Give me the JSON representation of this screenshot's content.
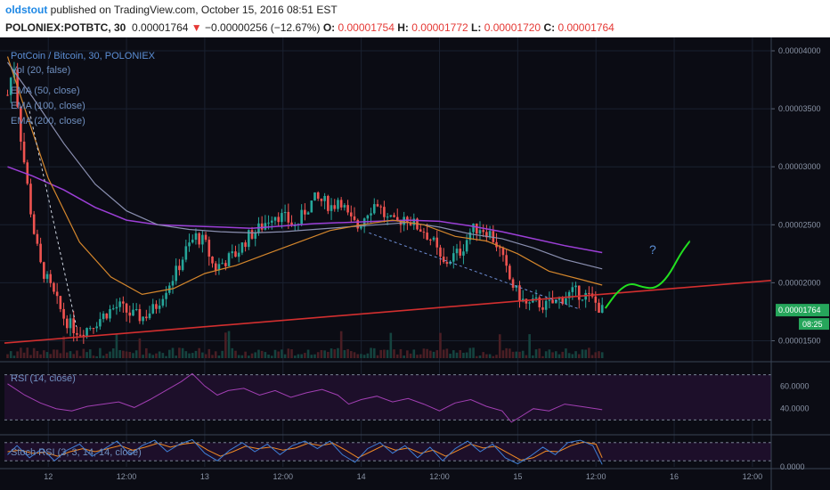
{
  "header": {
    "author": "oldstout",
    "published": "published on TradingView.com, October 15, 2016 08:51 EST",
    "symbol": "POLONIEX:POTBTC, 30",
    "price": "0.00001764",
    "change_arrow": "▼",
    "change": "−0.00000256 (−12.67%)",
    "o_label": "O:",
    "o_value": "0.00001754",
    "h_label": "H:",
    "h_value": "0.00001772",
    "l_label": "L:",
    "l_value": "0.00001720",
    "c_label": "C:",
    "c_value": "0.00001764"
  },
  "legend": {
    "title": "PotCoin / Bitcoin, 30, POLONIEX",
    "vol": "Vol (20, false)",
    "ema50": "EMA (50, close)",
    "ema100": "EMA (100, close)",
    "ema200": "EMA (200, close)"
  },
  "rsi_label": "RSI (14, close)",
  "stoch_label": "Stoch RSI (3, 3, 14, 14, close)",
  "price_tag": "0.00001764",
  "time_tag": "08:25",
  "annotation": "?",
  "colors": {
    "background": "#0b0c14",
    "grid": "#1a2130",
    "up": "#26a69a",
    "down": "#ef5350",
    "ema50": "#d4862c",
    "ema100": "#8a8fb0",
    "ema200": "#9c3fd6",
    "trendline": "#d32f2f",
    "projection": "#22e020",
    "rsi": "#a23fb3",
    "stoch_k": "#3f7fd6",
    "stoch_d": "#f08a24",
    "price_tag": "#26a65b"
  },
  "chart_data": [
    {
      "type": "candlestick",
      "x_ticks": [
        "12",
        "12:00",
        "13",
        "12:00",
        "14",
        "12:00",
        "15",
        "12:00",
        "16",
        "12:00"
      ],
      "y_ticks": [
        "0.00001500",
        "0.00002000",
        "0.00002500",
        "0.00003000",
        "0.00003500",
        "0.00004000"
      ],
      "ylim": [
        1.35e-05,
        4.1e-05
      ],
      "x_days": [
        12,
        12.5,
        13,
        13.5,
        14,
        14.5,
        15,
        15.5,
        16,
        16.5
      ],
      "xlim": [
        11.72,
        16.62
      ],
      "grid": true,
      "last_price": 1.764e-05,
      "open": 1.754e-05,
      "high": 1.772e-05,
      "low": 1.72e-05,
      "close": 1.764e-05,
      "price_path": [
        [
          11.74,
          3.62e-05
        ],
        [
          11.78,
          3.9e-05
        ],
        [
          11.82,
          3.3e-05
        ],
        [
          11.86,
          2.9e-05
        ],
        [
          11.9,
          2.5e-05
        ],
        [
          11.95,
          2.15e-05
        ],
        [
          12.0,
          2e-05
        ],
        [
          12.05,
          1.85e-05
        ],
        [
          12.1,
          1.7e-05
        ],
        [
          12.15,
          1.62e-05
        ],
        [
          12.2,
          1.58e-05
        ],
        [
          12.26,
          1.62e-05
        ],
        [
          12.32,
          1.68e-05
        ],
        [
          12.38,
          1.75e-05
        ],
        [
          12.45,
          1.8e-05
        ],
        [
          12.52,
          1.73e-05
        ],
        [
          12.6,
          1.7e-05
        ],
        [
          12.68,
          1.78e-05
        ],
        [
          12.75,
          1.95e-05
        ],
        [
          12.82,
          2.1e-05
        ],
        [
          12.88,
          2.28e-05
        ],
        [
          12.94,
          2.4e-05
        ],
        [
          13.0,
          2.35e-05
        ],
        [
          13.06,
          2.12e-05
        ],
        [
          13.12,
          2.18e-05
        ],
        [
          13.2,
          2.25e-05
        ],
        [
          13.28,
          2.4e-05
        ],
        [
          13.36,
          2.48e-05
        ],
        [
          13.44,
          2.6e-05
        ],
        [
          13.52,
          2.55e-05
        ],
        [
          13.58,
          2.48e-05
        ],
        [
          13.64,
          2.62e-05
        ],
        [
          13.7,
          2.72e-05
        ],
        [
          13.76,
          2.7e-05
        ],
        [
          13.82,
          2.65e-05
        ],
        [
          13.86,
          2.75e-05
        ],
        [
          13.92,
          2.55e-05
        ],
        [
          13.98,
          2.48e-05
        ],
        [
          14.04,
          2.62e-05
        ],
        [
          14.1,
          2.7e-05
        ],
        [
          14.16,
          2.55e-05
        ],
        [
          14.22,
          2.5e-05
        ],
        [
          14.28,
          2.58e-05
        ],
        [
          14.34,
          2.5e-05
        ],
        [
          14.4,
          2.45e-05
        ],
        [
          14.46,
          2.35e-05
        ],
        [
          14.52,
          2.15e-05
        ],
        [
          14.58,
          2.22e-05
        ],
        [
          14.64,
          2.28e-05
        ],
        [
          14.7,
          2.45e-05
        ],
        [
          14.76,
          2.48e-05
        ],
        [
          14.82,
          2.43e-05
        ],
        [
          14.88,
          2.3e-05
        ],
        [
          14.94,
          2.05e-05
        ],
        [
          15.0,
          1.9e-05
        ],
        [
          15.06,
          1.8e-05
        ],
        [
          15.12,
          1.83e-05
        ],
        [
          15.18,
          1.8e-05
        ],
        [
          15.24,
          1.83e-05
        ],
        [
          15.3,
          1.88e-05
        ],
        [
          15.36,
          1.92e-05
        ],
        [
          15.42,
          1.9e-05
        ],
        [
          15.48,
          1.85e-05
        ],
        [
          15.54,
          1.76e-05
        ]
      ],
      "ema50": [
        [
          11.74,
          3.95e-05
        ],
        [
          11.85,
          3.5e-05
        ],
        [
          12.0,
          2.9e-05
        ],
        [
          12.2,
          2.35e-05
        ],
        [
          12.4,
          2.05e-05
        ],
        [
          12.6,
          1.9e-05
        ],
        [
          12.8,
          1.95e-05
        ],
        [
          13.0,
          2.08e-05
        ],
        [
          13.2,
          2.15e-05
        ],
        [
          13.4,
          2.25e-05
        ],
        [
          13.6,
          2.35e-05
        ],
        [
          13.8,
          2.45e-05
        ],
        [
          14.0,
          2.5e-05
        ],
        [
          14.2,
          2.54e-05
        ],
        [
          14.4,
          2.5e-05
        ],
        [
          14.6,
          2.4e-05
        ],
        [
          14.8,
          2.36e-05
        ],
        [
          15.0,
          2.25e-05
        ],
        [
          15.2,
          2.1e-05
        ],
        [
          15.4,
          2.03e-05
        ],
        [
          15.54,
          1.98e-05
        ]
      ],
      "ema100": [
        [
          11.74,
          3.9e-05
        ],
        [
          11.9,
          3.6e-05
        ],
        [
          12.1,
          3.2e-05
        ],
        [
          12.3,
          2.85e-05
        ],
        [
          12.5,
          2.62e-05
        ],
        [
          12.7,
          2.5e-05
        ],
        [
          12.9,
          2.46e-05
        ],
        [
          13.1,
          2.44e-05
        ],
        [
          13.3,
          2.43e-05
        ],
        [
          13.5,
          2.44e-05
        ],
        [
          13.7,
          2.46e-05
        ],
        [
          13.9,
          2.48e-05
        ],
        [
          14.1,
          2.5e-05
        ],
        [
          14.3,
          2.52e-05
        ],
        [
          14.5,
          2.48e-05
        ],
        [
          14.7,
          2.42e-05
        ],
        [
          14.9,
          2.38e-05
        ],
        [
          15.1,
          2.3e-05
        ],
        [
          15.3,
          2.2e-05
        ],
        [
          15.54,
          2.12e-05
        ]
      ],
      "ema200": [
        [
          11.74,
          3e-05
        ],
        [
          11.9,
          2.92e-05
        ],
        [
          12.1,
          2.8e-05
        ],
        [
          12.3,
          2.65e-05
        ],
        [
          12.5,
          2.54e-05
        ],
        [
          12.7,
          2.5e-05
        ],
        [
          12.9,
          2.49e-05
        ],
        [
          13.1,
          2.48e-05
        ],
        [
          13.3,
          2.47e-05
        ],
        [
          13.5,
          2.49e-05
        ],
        [
          13.7,
          2.51e-05
        ],
        [
          13.9,
          2.52e-05
        ],
        [
          14.1,
          2.53e-05
        ],
        [
          14.3,
          2.54e-05
        ],
        [
          14.5,
          2.53e-05
        ],
        [
          14.7,
          2.49e-05
        ],
        [
          14.9,
          2.44e-05
        ],
        [
          15.1,
          2.38e-05
        ],
        [
          15.3,
          2.32e-05
        ],
        [
          15.54,
          2.26e-05
        ]
      ],
      "support_line": [
        [
          11.72,
          1.48e-05
        ],
        [
          16.62,
          2.02e-05
        ]
      ],
      "down_trend_1": [
        [
          11.88,
          3.48e-05
        ],
        [
          12.18,
          1.62e-05
        ]
      ],
      "down_trend_2": [
        [
          14.05,
          2.43e-05
        ],
        [
          15.4,
          1.77e-05
        ]
      ],
      "projection": [
        [
          15.56,
          1.78e-05
        ],
        [
          15.64,
          1.93e-05
        ],
        [
          15.72,
          2e-05
        ],
        [
          15.8,
          1.96e-05
        ],
        [
          15.88,
          1.95e-05
        ],
        [
          15.96,
          2.05e-05
        ],
        [
          16.04,
          2.25e-05
        ],
        [
          16.1,
          2.36e-05
        ]
      ],
      "annotation_point": [
        15.84,
        2.25e-05
      ]
    },
    {
      "type": "line",
      "name": "RSI (14, close)",
      "y_ticks": [
        "40.0000",
        "60.0000"
      ],
      "ylim": [
        20,
        80
      ],
      "bands": [
        30,
        70
      ],
      "values": [
        [
          11.74,
          62
        ],
        [
          11.85,
          52
        ],
        [
          11.95,
          45
        ],
        [
          12.05,
          40
        ],
        [
          12.15,
          38
        ],
        [
          12.25,
          42
        ],
        [
          12.35,
          44
        ],
        [
          12.45,
          46
        ],
        [
          12.55,
          41
        ],
        [
          12.65,
          48
        ],
        [
          12.75,
          56
        ],
        [
          12.85,
          64
        ],
        [
          12.92,
          71
        ],
        [
          13.0,
          60
        ],
        [
          13.08,
          52
        ],
        [
          13.15,
          56
        ],
        [
          13.25,
          58
        ],
        [
          13.35,
          52
        ],
        [
          13.45,
          56
        ],
        [
          13.55,
          50
        ],
        [
          13.65,
          54
        ],
        [
          13.75,
          57
        ],
        [
          13.85,
          52
        ],
        [
          13.92,
          44
        ],
        [
          14.0,
          48
        ],
        [
          14.1,
          51
        ],
        [
          14.2,
          46
        ],
        [
          14.3,
          49
        ],
        [
          14.4,
          44
        ],
        [
          14.5,
          38
        ],
        [
          14.6,
          45
        ],
        [
          14.7,
          48
        ],
        [
          14.8,
          42
        ],
        [
          14.9,
          38
        ],
        [
          14.96,
          28
        ],
        [
          15.02,
          33
        ],
        [
          15.1,
          40
        ],
        [
          15.2,
          38
        ],
        [
          15.3,
          44
        ],
        [
          15.4,
          42
        ],
        [
          15.5,
          40
        ],
        [
          15.54,
          39
        ]
      ]
    },
    {
      "type": "line",
      "name": "Stoch RSI (3, 3, 14, 14, close)",
      "y_ticks": [
        "0.0000"
      ],
      "ylim": [
        0,
        100
      ],
      "bands": [
        20,
        80
      ],
      "k": [
        [
          11.74,
          40
        ],
        [
          11.8,
          70
        ],
        [
          11.88,
          30
        ],
        [
          11.96,
          60
        ],
        [
          12.04,
          20
        ],
        [
          12.12,
          55
        ],
        [
          12.2,
          75
        ],
        [
          12.28,
          35
        ],
        [
          12.36,
          60
        ],
        [
          12.44,
          85
        ],
        [
          12.52,
          40
        ],
        [
          12.6,
          70
        ],
        [
          12.68,
          88
        ],
        [
          12.76,
          50
        ],
        [
          12.84,
          75
        ],
        [
          12.92,
          90
        ],
        [
          13.0,
          45
        ],
        [
          13.08,
          20
        ],
        [
          13.16,
          55
        ],
        [
          13.24,
          80
        ],
        [
          13.32,
          50
        ],
        [
          13.4,
          75
        ],
        [
          13.48,
          40
        ],
        [
          13.56,
          70
        ],
        [
          13.64,
          85
        ],
        [
          13.72,
          60
        ],
        [
          13.8,
          85
        ],
        [
          13.88,
          40
        ],
        [
          13.96,
          15
        ],
        [
          14.04,
          60
        ],
        [
          14.12,
          80
        ],
        [
          14.2,
          45
        ],
        [
          14.28,
          70
        ],
        [
          14.36,
          30
        ],
        [
          14.44,
          65
        ],
        [
          14.52,
          20
        ],
        [
          14.6,
          60
        ],
        [
          14.68,
          85
        ],
        [
          14.76,
          50
        ],
        [
          14.84,
          75
        ],
        [
          14.92,
          30
        ],
        [
          15.0,
          10
        ],
        [
          15.08,
          35
        ],
        [
          15.16,
          65
        ],
        [
          15.24,
          40
        ],
        [
          15.32,
          80
        ],
        [
          15.4,
          88
        ],
        [
          15.48,
          70
        ],
        [
          15.54,
          8
        ]
      ],
      "d": [
        [
          11.74,
          50
        ],
        [
          11.82,
          55
        ],
        [
          11.9,
          45
        ],
        [
          11.98,
          48
        ],
        [
          12.06,
          35
        ],
        [
          12.14,
          50
        ],
        [
          12.22,
          60
        ],
        [
          12.3,
          50
        ],
        [
          12.38,
          60
        ],
        [
          12.46,
          70
        ],
        [
          12.54,
          55
        ],
        [
          12.62,
          65
        ],
        [
          12.7,
          78
        ],
        [
          12.78,
          65
        ],
        [
          12.86,
          75
        ],
        [
          12.94,
          80
        ],
        [
          13.02,
          55
        ],
        [
          13.1,
          35
        ],
        [
          13.18,
          50
        ],
        [
          13.26,
          68
        ],
        [
          13.34,
          60
        ],
        [
          13.42,
          65
        ],
        [
          13.5,
          55
        ],
        [
          13.58,
          62
        ],
        [
          13.66,
          78
        ],
        [
          13.74,
          70
        ],
        [
          13.82,
          78
        ],
        [
          13.9,
          55
        ],
        [
          13.98,
          30
        ],
        [
          14.06,
          50
        ],
        [
          14.14,
          70
        ],
        [
          14.22,
          55
        ],
        [
          14.3,
          62
        ],
        [
          14.38,
          45
        ],
        [
          14.46,
          55
        ],
        [
          14.54,
          35
        ],
        [
          14.62,
          55
        ],
        [
          14.7,
          75
        ],
        [
          14.78,
          62
        ],
        [
          14.86,
          68
        ],
        [
          14.94,
          45
        ],
        [
          15.02,
          22
        ],
        [
          15.1,
          30
        ],
        [
          15.18,
          52
        ],
        [
          15.26,
          50
        ],
        [
          15.34,
          70
        ],
        [
          15.42,
          82
        ],
        [
          15.5,
          75
        ],
        [
          15.54,
          30
        ]
      ]
    }
  ]
}
